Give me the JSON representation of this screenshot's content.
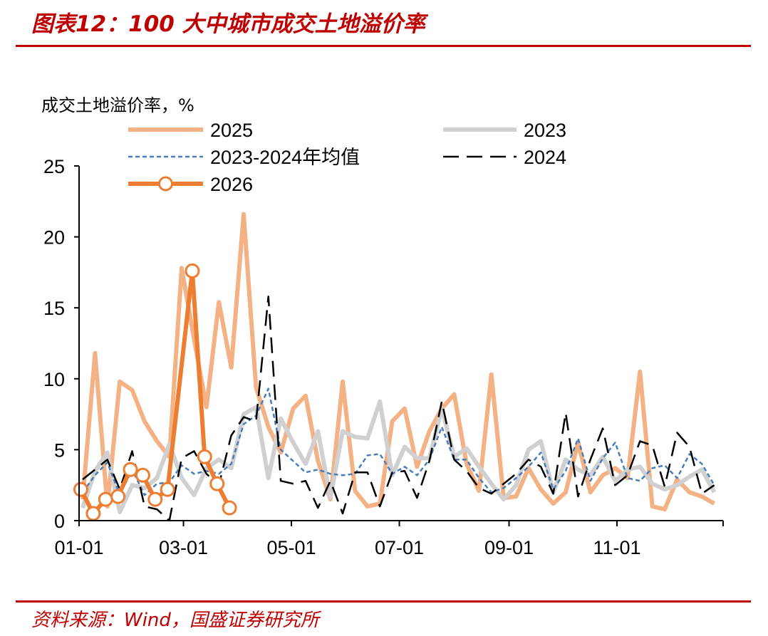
{
  "figure": {
    "title": "图表12：100 大中城市成交土地溢价率",
    "source": "资料来源：Wind，国盛证券研究所"
  },
  "chart_data": {
    "type": "line",
    "ylabel": "成交土地溢价率，%",
    "ylim": [
      0,
      25
    ],
    "yticks": [
      "0",
      "5",
      "10",
      "15",
      "20",
      "25"
    ],
    "xlim": [
      "01-01",
      "12-31"
    ],
    "xticks": [
      "01-01",
      "03-01",
      "05-01",
      "07-01",
      "09-01",
      "11-01"
    ],
    "legend_position": "top",
    "colors": {
      "2025": "#f4b183",
      "2023": "#d0d0d0",
      "avg": "#4a7ebb",
      "2024": "#000000",
      "2026": "#ed7d31"
    },
    "series": [
      {
        "name": "2025",
        "x": [
          "01-03",
          "01-10",
          "01-17",
          "01-24",
          "01-31",
          "02-07",
          "02-14",
          "02-21",
          "02-28",
          "03-07",
          "03-14",
          "03-21",
          "03-28",
          "04-04",
          "04-11",
          "04-18",
          "04-25",
          "05-02",
          "05-09",
          "05-16",
          "05-23",
          "05-30",
          "06-06",
          "06-13",
          "06-20",
          "06-27",
          "07-04",
          "07-11",
          "07-18",
          "07-25",
          "08-01",
          "08-08",
          "08-15",
          "08-22",
          "08-29",
          "09-05",
          "09-12",
          "09-19",
          "09-26",
          "10-03",
          "10-10",
          "10-17",
          "10-24",
          "10-31",
          "11-07",
          "11-14",
          "11-21",
          "11-28",
          "12-05",
          "12-12",
          "12-19",
          "12-26"
        ],
        "values": [
          1.5,
          11.8,
          1.0,
          9.8,
          9.2,
          7.0,
          5.6,
          4.5,
          17.8,
          12.8,
          8.0,
          15.4,
          10.8,
          21.6,
          9.4,
          6.6,
          4.8,
          7.9,
          8.8,
          4.2,
          1.5,
          9.8,
          2.1,
          1.0,
          1.2,
          7.0,
          7.9,
          3.8,
          6.3,
          7.9,
          8.9,
          4.0,
          2.1,
          10.3,
          1.6,
          1.7,
          3.7,
          2.2,
          1.2,
          2.0,
          5.5,
          2.0,
          3.2,
          3.7,
          3.0,
          10.5,
          1.0,
          0.8,
          2.9,
          2.0,
          1.7,
          1.2
        ]
      },
      {
        "name": "2023",
        "x": [
          "01-03",
          "01-10",
          "01-17",
          "01-24",
          "01-31",
          "02-07",
          "02-14",
          "02-21",
          "02-28",
          "03-07",
          "03-14",
          "03-21",
          "03-28",
          "04-04",
          "04-11",
          "04-18",
          "04-25",
          "05-02",
          "05-09",
          "05-16",
          "05-23",
          "05-30",
          "06-06",
          "06-13",
          "06-20",
          "06-27",
          "07-04",
          "07-11",
          "07-18",
          "07-25",
          "08-01",
          "08-08",
          "08-15",
          "08-22",
          "08-29",
          "09-05",
          "09-12",
          "09-19",
          "09-26",
          "10-03",
          "10-10",
          "10-17",
          "10-24",
          "10-31",
          "11-07",
          "11-14",
          "11-21",
          "11-28",
          "12-05",
          "12-12",
          "12-19",
          "12-26"
        ],
        "values": [
          0.9,
          3.5,
          4.8,
          0.6,
          2.5,
          2.3,
          3.0,
          5.4,
          3.0,
          1.8,
          3.7,
          4.3,
          3.7,
          7.5,
          8.0,
          3.0,
          7.2,
          5.5,
          4.0,
          6.3,
          1.6,
          6.3,
          5.9,
          5.8,
          8.4,
          3.2,
          5.2,
          4.4,
          4.4,
          7.9,
          4.5,
          5.1,
          3.8,
          2.6,
          1.5,
          2.5,
          5.0,
          5.6,
          2.0,
          4.3,
          3.6,
          3.2,
          4.5,
          2.8,
          3.6,
          3.8,
          2.6,
          2.2,
          2.5,
          3.1,
          3.6,
          2.0
        ]
      },
      {
        "name": "2023-2024年均值",
        "x": [
          "01-03",
          "01-10",
          "01-17",
          "01-24",
          "01-31",
          "02-07",
          "02-14",
          "02-21",
          "02-28",
          "03-07",
          "03-14",
          "03-21",
          "03-28",
          "04-04",
          "04-11",
          "04-18",
          "04-25",
          "05-02",
          "05-09",
          "05-16",
          "05-23",
          "05-30",
          "06-06",
          "06-13",
          "06-20",
          "06-27",
          "07-04",
          "07-11",
          "07-18",
          "07-25",
          "08-01",
          "08-08",
          "08-15",
          "08-22",
          "08-29",
          "09-05",
          "09-12",
          "09-19",
          "09-26",
          "10-03",
          "10-10",
          "10-17",
          "10-24",
          "10-31",
          "11-07",
          "11-14",
          "11-21",
          "11-28",
          "12-05",
          "12-12",
          "12-19",
          "12-26"
        ],
        "values": [
          2.0,
          3.2,
          4.1,
          1.8,
          3.6,
          1.8,
          2.6,
          2.7,
          3.9,
          3.3,
          3.5,
          3.3,
          4.0,
          6.8,
          7.4,
          9.3,
          5.0,
          4.2,
          3.4,
          3.6,
          3.3,
          3.2,
          3.3,
          4.6,
          4.7,
          3.3,
          3.8,
          3.2,
          4.3,
          6.6,
          4.3,
          4.3,
          3.0,
          2.0,
          2.3,
          3.0,
          3.8,
          4.8,
          2.2,
          3.5,
          5.8,
          2.8,
          4.4,
          5.5,
          3.0,
          2.8,
          3.7,
          3.9,
          3.0,
          4.7,
          4.0,
          2.5
        ]
      },
      {
        "name": "2024",
        "x": [
          "01-03",
          "01-10",
          "01-17",
          "01-24",
          "01-31",
          "02-07",
          "02-14",
          "02-21",
          "02-28",
          "03-07",
          "03-14",
          "03-21",
          "03-28",
          "04-04",
          "04-11",
          "04-18",
          "04-25",
          "05-02",
          "05-09",
          "05-16",
          "05-23",
          "05-30",
          "06-06",
          "06-13",
          "06-20",
          "06-27",
          "07-04",
          "07-11",
          "07-18",
          "07-25",
          "08-01",
          "08-08",
          "08-15",
          "08-22",
          "08-29",
          "09-05",
          "09-12",
          "09-19",
          "09-26",
          "10-03",
          "10-10",
          "10-17",
          "10-24",
          "10-31",
          "11-07",
          "11-14",
          "11-21",
          "11-28",
          "12-05",
          "12-12",
          "12-19",
          "12-26"
        ],
        "values": [
          2.9,
          3.6,
          4.3,
          2.2,
          4.9,
          1.0,
          0.8,
          0.0,
          4.4,
          4.9,
          3.3,
          2.5,
          6.0,
          7.3,
          7.0,
          15.8,
          2.8,
          2.6,
          2.8,
          0.9,
          2.8,
          0.5,
          3.4,
          3.4,
          1.0,
          3.4,
          3.5,
          1.6,
          4.2,
          8.4,
          4.3,
          3.5,
          2.3,
          1.9,
          2.6,
          3.3,
          4.3,
          3.8,
          1.9,
          7.6,
          1.7,
          4.3,
          6.5,
          2.5,
          3.2,
          5.6,
          5.3,
          2.4,
          6.2,
          5.2,
          1.9,
          2.5
        ]
      },
      {
        "name": "2026",
        "x": [
          "01-02",
          "01-09",
          "01-16",
          "01-23",
          "01-30",
          "02-06",
          "02-13",
          "02-20",
          "03-06",
          "03-13",
          "03-20",
          "03-27"
        ],
        "values": [
          2.2,
          0.5,
          1.5,
          1.7,
          3.6,
          3.2,
          1.5,
          2.2,
          17.6,
          4.5,
          2.6,
          0.9
        ]
      }
    ]
  }
}
